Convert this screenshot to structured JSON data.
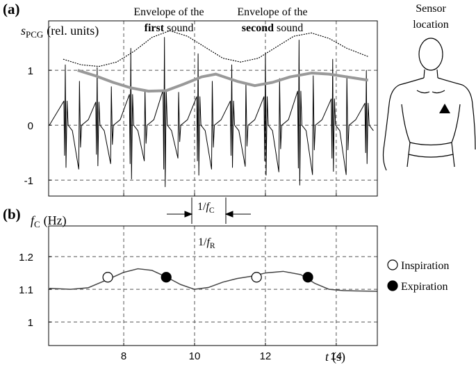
{
  "chart_data": [
    {
      "type": "line",
      "panel_label": "(a)",
      "ylabel": {
        "symbol": "s",
        "subscript": "PCG",
        "unit": "(rel. units)"
      },
      "xlim": [
        5.88,
        15.16
      ],
      "ylim": [
        -1.29,
        1.9
      ],
      "xticks": [
        8,
        10,
        12,
        14
      ],
      "xtick_labels": false,
      "yticks": [
        -1,
        0,
        1
      ],
      "grid": true,
      "annotations": [
        {
          "line1": "Envelope of the",
          "bold": "first",
          "rest": "sound"
        },
        {
          "line1": "Envelope of the",
          "bold": "second",
          "rest": "sound"
        }
      ],
      "period_label": {
        "prefix": "1/",
        "symbol": "f",
        "subscript": "C"
      },
      "series": [
        {
          "color": "#000000",
          "width": 1,
          "style": "solid",
          "x": [
            5.9,
            6.31,
            6.33,
            6.35,
            6.37,
            6.4,
            6.43,
            6.55,
            6.73,
            6.75,
            6.78,
            6.81,
            7.0,
            7.21,
            7.23,
            7.25,
            7.27,
            7.3,
            7.33,
            7.45,
            7.63,
            7.65,
            7.68,
            7.71,
            7.9,
            8.16,
            8.18,
            8.2,
            8.22,
            8.25,
            8.28,
            8.4,
            8.58,
            8.6,
            8.63,
            8.66,
            8.85,
            9.11,
            9.13,
            9.15,
            9.17,
            9.2,
            9.23,
            9.35,
            9.53,
            9.55,
            9.58,
            9.61,
            9.8,
            10.06,
            10.08,
            10.1,
            10.12,
            10.15,
            10.18,
            10.3,
            10.48,
            10.5,
            10.53,
            10.56,
            10.75,
            11.01,
            11.03,
            11.05,
            11.07,
            11.1,
            11.13,
            11.25,
            11.43,
            11.45,
            11.48,
            11.51,
            11.7,
            11.96,
            11.98,
            12.0,
            12.02,
            12.05,
            12.08,
            12.2,
            12.38,
            12.4,
            12.43,
            12.46,
            12.65,
            12.91,
            12.93,
            12.95,
            12.97,
            13.0,
            13.03,
            13.15,
            13.33,
            13.35,
            13.38,
            13.41,
            13.6,
            13.86,
            13.88,
            13.9,
            13.92,
            13.95,
            13.98,
            14.1,
            14.28,
            14.3,
            14.33,
            14.36,
            14.55,
            14.81,
            14.83,
            14.85,
            14.87,
            14.9,
            14.93,
            15.05
          ],
          "values": [
            0,
            0.44,
            -0.55,
            1.1,
            -0.77,
            0.44,
            0,
            -0.1,
            -0.8,
            0.8,
            -0.4,
            0,
            0.1,
            0.42,
            -0.53,
            1.05,
            -0.74,
            0.42,
            0,
            -0.1,
            -0.7,
            0.7,
            -0.35,
            0,
            0.1,
            0.56,
            -0.7,
            1.4,
            -0.98,
            0.56,
            0,
            -0.1,
            -0.65,
            0.65,
            -0.33,
            0,
            0.1,
            0.64,
            -0.8,
            1.6,
            -1.12,
            0.64,
            0,
            -0.1,
            -0.6,
            0.6,
            -0.3,
            0,
            0.1,
            0.52,
            -0.65,
            1.3,
            -0.91,
            0.52,
            0,
            -0.1,
            -0.8,
            0.8,
            -0.4,
            0,
            0.1,
            0.44,
            -0.55,
            1.1,
            -0.77,
            0.44,
            0,
            -0.1,
            -0.75,
            0.75,
            -0.38,
            0,
            0.1,
            0.52,
            -0.65,
            1.3,
            -0.91,
            0.52,
            0,
            -0.1,
            -0.85,
            0.85,
            -0.43,
            0,
            0.1,
            0.62,
            -0.78,
            1.55,
            -1.09,
            0.62,
            0,
            -0.1,
            -0.9,
            0.9,
            -0.45,
            0,
            0.1,
            0.48,
            -0.6,
            1.2,
            -0.84,
            0.48,
            0,
            -0.1,
            -0.9,
            0.9,
            -0.45,
            0,
            0.1,
            0.4,
            -0.5,
            1.0,
            -0.7,
            0.4,
            0,
            -0.1
          ]
        },
        {
          "color": "#000000",
          "width": 1.2,
          "style": "dotted",
          "x": [
            6.3,
            6.8,
            7.3,
            7.8,
            8.3,
            8.8,
            9.3,
            9.8,
            10.3,
            10.8,
            11.3,
            11.8,
            12.3,
            12.8,
            13.3,
            13.8,
            14.3,
            14.9
          ],
          "values": [
            1.2,
            1.1,
            1.07,
            1.15,
            1.35,
            1.6,
            1.72,
            1.62,
            1.42,
            1.22,
            1.15,
            1.22,
            1.42,
            1.62,
            1.68,
            1.58,
            1.4,
            1.25
          ]
        },
        {
          "color": "#999999",
          "width": 4,
          "style": "solid",
          "x": [
            6.7,
            7.2,
            7.7,
            8.2,
            8.7,
            9.2,
            9.7,
            10.2,
            10.6,
            11.2,
            11.7,
            12.2,
            12.7,
            13.3,
            13.8,
            14.3,
            14.9
          ],
          "values": [
            1.0,
            0.9,
            0.78,
            0.68,
            0.62,
            0.63,
            0.75,
            0.88,
            0.93,
            0.8,
            0.72,
            0.78,
            0.88,
            0.95,
            0.93,
            0.88,
            0.82
          ]
        }
      ]
    },
    {
      "type": "line",
      "panel_label": "(b)",
      "ylabel": {
        "symbol": "f",
        "subscript": "C",
        "unit": "(Hz)"
      },
      "xlabel": {
        "symbol": "t",
        "unit": "(s)"
      },
      "xlim": [
        5.88,
        15.16
      ],
      "ylim": [
        0.928,
        1.294
      ],
      "xticks": [
        8,
        10,
        12,
        14
      ],
      "xtick_labels": true,
      "yticks": [
        1,
        1.1,
        1.2
      ],
      "grid": true,
      "period_label": {
        "prefix": "1/",
        "symbol": "f",
        "subscript": "R"
      },
      "series": [
        {
          "color": "#444444",
          "width": 1.5,
          "style": "solid",
          "x": [
            5.9,
            6.5,
            7.0,
            7.5,
            8.0,
            8.4,
            8.8,
            9.2,
            9.6,
            10.0,
            10.4,
            10.8,
            11.2,
            11.6,
            12.0,
            12.5,
            13.0,
            13.4,
            13.8,
            14.2,
            14.6,
            15.15
          ],
          "values": [
            1.103,
            1.1,
            1.105,
            1.128,
            1.152,
            1.163,
            1.158,
            1.138,
            1.115,
            1.1,
            1.106,
            1.122,
            1.133,
            1.14,
            1.15,
            1.155,
            1.145,
            1.118,
            1.1,
            1.096,
            1.095,
            1.094
          ]
        },
        {
          "name": "Inspiration",
          "marker": "open",
          "color": "#000000",
          "x": [
            7.55,
            11.75
          ],
          "values": [
            1.137,
            1.137
          ]
        },
        {
          "name": "Expiration",
          "marker": "filled",
          "color": "#000000",
          "x": [
            9.2,
            13.2
          ],
          "values": [
            1.137,
            1.137
          ]
        }
      ]
    }
  ],
  "sensor": {
    "lines": [
      "Sensor",
      "location"
    ]
  }
}
